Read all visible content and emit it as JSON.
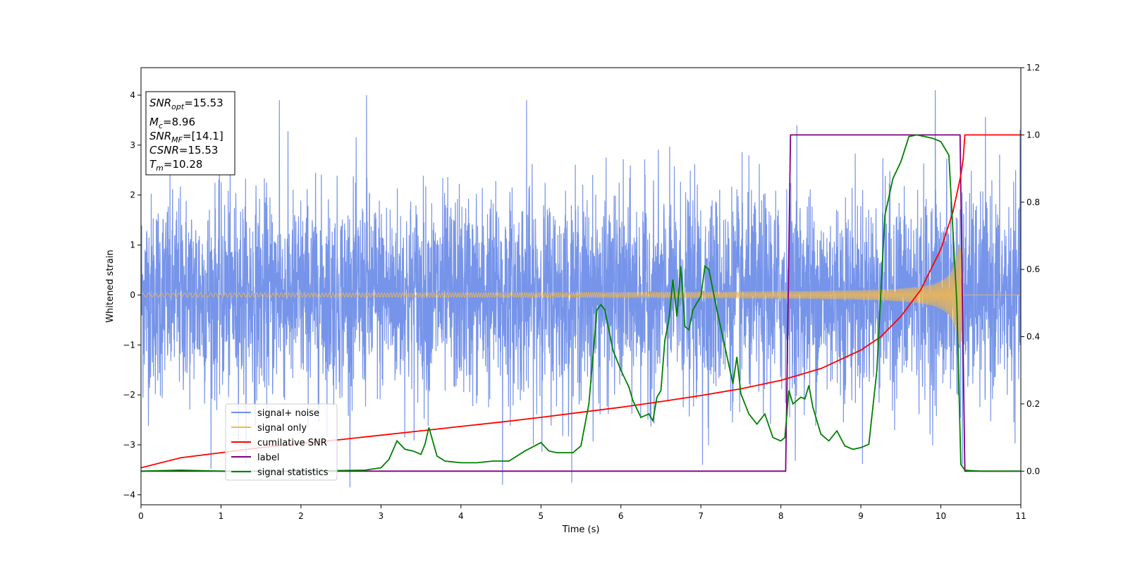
{
  "chart_data": {
    "type": "line",
    "title": "",
    "xlabel": "Time (s)",
    "ylabel": "Whitened strain",
    "xlim": [
      0,
      11
    ],
    "ylim": [
      -4.2,
      4.55
    ],
    "y2lim": [
      -0.1,
      1.2
    ],
    "xticks": [
      0,
      1,
      2,
      3,
      4,
      5,
      6,
      7,
      8,
      9,
      10,
      11
    ],
    "yticks": [
      4,
      3,
      2,
      1,
      0,
      -1,
      -2,
      -3,
      -4
    ],
    "yticklabels": [
      "4",
      "3",
      "2",
      "1",
      "0",
      "−1",
      "−2",
      "−3",
      "−4"
    ],
    "y2ticks": [
      1.2,
      1.0,
      0.8,
      0.6,
      0.4,
      0.2,
      0.0
    ],
    "y2ticklabels": [
      "1.2",
      "1.0",
      "0.8",
      "0.6",
      "0.4",
      "0.2",
      "0.0"
    ],
    "grid": false,
    "legend_position": "lower-left",
    "legend": [
      "signal+ noise",
      "signal only",
      "cumilative SNR",
      "label",
      "signal statistics"
    ],
    "colors": {
      "noise": "#6f8ee8",
      "signal": "#f5b84a",
      "snr": "#ff0000",
      "label": "#800080",
      "stat": "#008000"
    },
    "annotation": {
      "lines": [
        {
          "name": "SNR",
          "sub": "opt",
          "value": "=15.53"
        },
        {
          "name": "M",
          "sub": "c",
          "value": "=8.96"
        },
        {
          "name": "SNR",
          "sub": "MF",
          "value": "=[14.1]"
        },
        {
          "name": "CSNR",
          "sub": "",
          "value": "=15.53"
        },
        {
          "name": "T",
          "sub": "m",
          "value": "=10.28"
        }
      ]
    },
    "series": [
      {
        "name": "signal+ noise",
        "axis": "left",
        "description": "whitened strain with noise, amplitude ~±2.5, peaks near ±4",
        "noise_sigma": 1.0,
        "peaks": [
          [
            1.73,
            3.9
          ],
          [
            2.82,
            4.0
          ],
          [
            4.82,
            3.9
          ],
          [
            9.93,
            4.15
          ],
          [
            4.52,
            -3.8
          ],
          [
            8.2,
            3.4
          ],
          [
            7.02,
            -3.4
          ],
          [
            10.27,
            -3.4
          ]
        ]
      },
      {
        "name": "signal only",
        "axis": "left",
        "chirp": {
          "t_merge": 10.28,
          "amp_start": 0.03,
          "amp_end": 1.0,
          "f_start": 12,
          "f_end": 60
        }
      },
      {
        "name": "cumilative SNR",
        "axis": "right",
        "x": [
          0,
          0.5,
          1,
          1.5,
          2,
          2.5,
          3,
          3.5,
          4,
          4.5,
          5,
          5.5,
          6,
          6.5,
          7,
          7.5,
          8,
          8.5,
          9,
          9.25,
          9.5,
          9.75,
          10,
          10.15,
          10.25,
          10.28,
          10.3,
          11
        ],
        "y": [
          0.01,
          0.04,
          0.055,
          0.07,
          0.082,
          0.094,
          0.107,
          0.12,
          0.133,
          0.146,
          0.16,
          0.175,
          0.19,
          0.207,
          0.225,
          0.245,
          0.27,
          0.305,
          0.36,
          0.4,
          0.46,
          0.54,
          0.66,
          0.77,
          0.88,
          0.93,
          1.0,
          1.0
        ]
      },
      {
        "name": "label",
        "axis": "right",
        "x": [
          0,
          8.06,
          8.12,
          10.24,
          10.3,
          11
        ],
        "y": [
          0,
          0,
          1,
          1,
          0,
          0
        ]
      },
      {
        "name": "signal statistics",
        "axis": "right",
        "x": [
          0,
          0.5,
          1,
          2,
          2.8,
          3.0,
          3.1,
          3.2,
          3.3,
          3.4,
          3.5,
          3.55,
          3.6,
          3.7,
          3.8,
          4.0,
          4.2,
          4.4,
          4.6,
          4.8,
          5.0,
          5.1,
          5.2,
          5.3,
          5.4,
          5.5,
          5.6,
          5.7,
          5.75,
          5.8,
          5.9,
          6.0,
          6.1,
          6.15,
          6.25,
          6.3,
          6.35,
          6.4,
          6.45,
          6.5,
          6.55,
          6.6,
          6.65,
          6.7,
          6.75,
          6.8,
          6.85,
          6.9,
          6.95,
          7.0,
          7.05,
          7.1,
          7.2,
          7.3,
          7.4,
          7.45,
          7.5,
          7.6,
          7.7,
          7.8,
          7.9,
          8.0,
          8.05,
          8.1,
          8.15,
          8.2,
          8.25,
          8.3,
          8.35,
          8.4,
          8.5,
          8.6,
          8.7,
          8.8,
          8.9,
          9.0,
          9.1,
          9.2,
          9.3,
          9.4,
          9.5,
          9.6,
          9.7,
          9.8,
          9.9,
          10.0,
          10.1,
          10.2,
          10.25,
          10.3,
          10.35,
          10.5,
          11
        ],
        "y": [
          0.0,
          0.003,
          0.0,
          0.0,
          0.003,
          0.01,
          0.035,
          0.09,
          0.065,
          0.06,
          0.05,
          0.08,
          0.13,
          0.045,
          0.03,
          0.025,
          0.025,
          0.03,
          0.03,
          0.06,
          0.085,
          0.06,
          0.055,
          0.055,
          0.055,
          0.075,
          0.2,
          0.48,
          0.495,
          0.48,
          0.36,
          0.3,
          0.25,
          0.21,
          0.16,
          0.165,
          0.17,
          0.15,
          0.22,
          0.24,
          0.39,
          0.45,
          0.57,
          0.46,
          0.61,
          0.43,
          0.42,
          0.48,
          0.5,
          0.52,
          0.61,
          0.6,
          0.48,
          0.37,
          0.26,
          0.34,
          0.23,
          0.17,
          0.14,
          0.17,
          0.1,
          0.09,
          0.1,
          0.24,
          0.2,
          0.21,
          0.22,
          0.215,
          0.255,
          0.19,
          0.11,
          0.09,
          0.12,
          0.075,
          0.065,
          0.07,
          0.08,
          0.3,
          0.76,
          0.87,
          0.92,
          0.995,
          1.0,
          0.995,
          0.99,
          0.98,
          0.94,
          0.5,
          0.02,
          0.003,
          0.002,
          0.0,
          0.0
        ]
      }
    ]
  }
}
